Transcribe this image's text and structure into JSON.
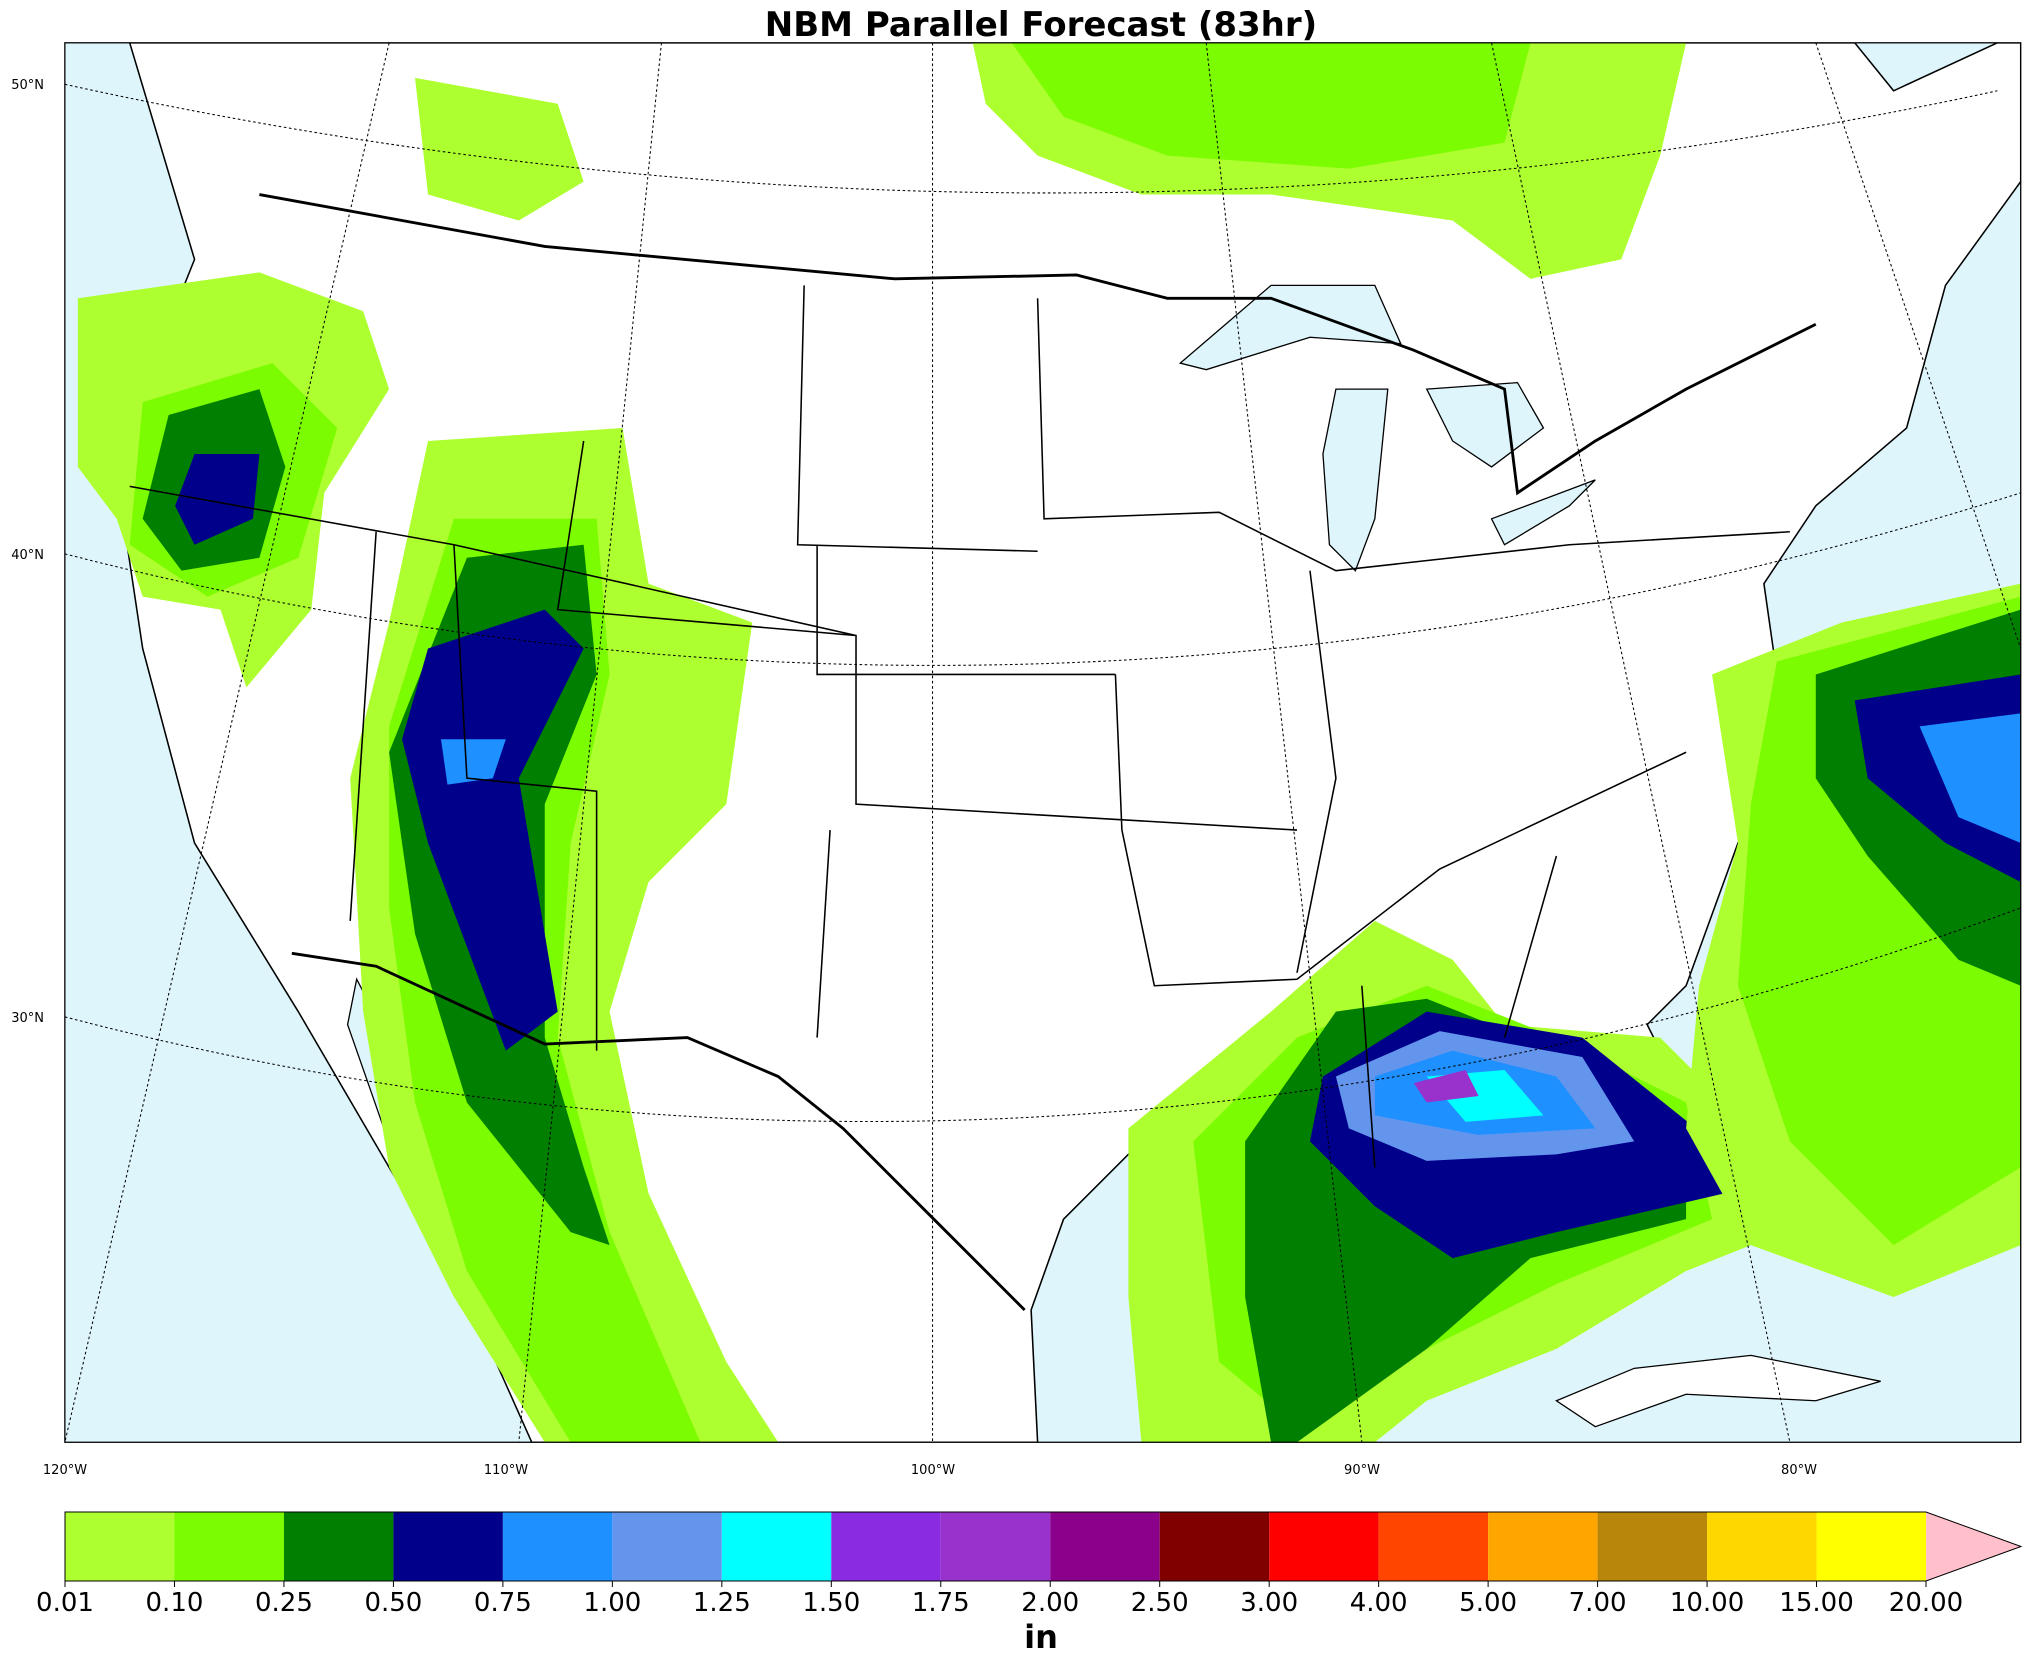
{
  "title": "NBM Parallel Forecast (83hr)",
  "map": {
    "lat_labels": [
      "50°N",
      "40°N",
      "30°N"
    ],
    "lon_labels": [
      "120°W",
      "110°W",
      "100°W",
      "90°W",
      "80°W"
    ]
  },
  "colorbar": {
    "unit": "in",
    "ticks": [
      {
        "value": 0.01,
        "label": "0.01"
      },
      {
        "value": 0.1,
        "label": "0.10"
      },
      {
        "value": 0.25,
        "label": "0.25"
      },
      {
        "value": 0.5,
        "label": "0.50"
      },
      {
        "value": 0.75,
        "label": "0.75"
      },
      {
        "value": 1,
        "label": "1.00"
      },
      {
        "value": 1.25,
        "label": "1.25"
      },
      {
        "value": 1.5,
        "label": "1.50"
      },
      {
        "value": 1.75,
        "label": "1.75"
      },
      {
        "value": 2,
        "label": "2.00"
      },
      {
        "value": 2.5,
        "label": "2.50"
      },
      {
        "value": 3,
        "label": "3.00"
      },
      {
        "value": 4,
        "label": "4.00"
      },
      {
        "value": 5,
        "label": "5.00"
      },
      {
        "value": 7,
        "label": "7.00"
      },
      {
        "value": 10,
        "label": "10.00"
      },
      {
        "value": 15,
        "label": "15.00"
      },
      {
        "value": 20,
        "label": "20.00"
      }
    ],
    "colors": [
      "#adff2f",
      "#7cfc00",
      "#007f00",
      "#00008b",
      "#1e90ff",
      "#6495ed",
      "#00ffff",
      "#8a2be2",
      "#9932cc",
      "#8b008b",
      "#800000",
      "#ff0000",
      "#ff4500",
      "#ffa500",
      "#b8860b",
      "#ffd700",
      "#ffff00"
    ],
    "extend_color": "#ffc0cb"
  }
}
